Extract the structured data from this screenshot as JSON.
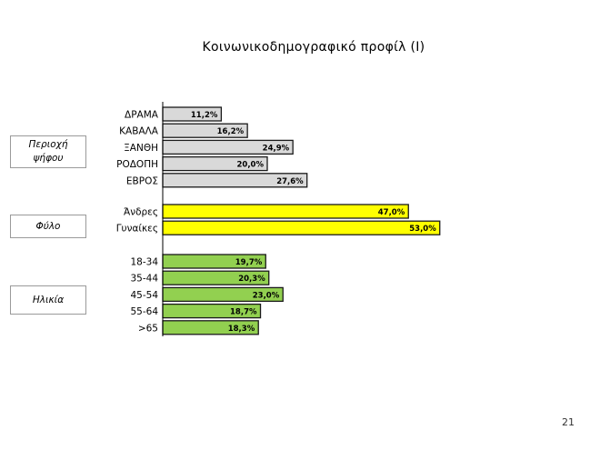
{
  "slide": {
    "title": "Κοινωνικοδημογραφικό προφίλ (Ι)",
    "page_number": "21"
  },
  "groups": [
    {
      "label": "Περιοχή ψήφου"
    },
    {
      "label": "Φύλο"
    },
    {
      "label": "Ηλικία"
    }
  ],
  "colors": {
    "region": "#d9d9d9",
    "gender": "#ffff00",
    "age": "#92d050",
    "outline": "#1a1a1a"
  },
  "chart_data": {
    "type": "bar",
    "orientation": "horizontal",
    "xlim": [
      0,
      65
    ],
    "grid": false,
    "groups": [
      {
        "name": "Περιοχή ψήφου",
        "color_key": "region",
        "categories": [
          "ΔΡΑΜΑ",
          "ΚΑΒΑΛΑ",
          "ΞΑΝΘΗ",
          "ΡΟΔΟΠΗ",
          "ΕΒΡΟΣ"
        ],
        "values": [
          11.2,
          16.2,
          24.9,
          20.0,
          27.6
        ],
        "labels": [
          "11,2%",
          "16,2%",
          "24,9%",
          "20,0%",
          "27,6%"
        ]
      },
      {
        "name": "Φύλο",
        "color_key": "gender",
        "categories": [
          "Άνδρες",
          "Γυναίκες"
        ],
        "values": [
          47.0,
          53.0
        ],
        "labels": [
          "47,0%",
          "53,0%"
        ]
      },
      {
        "name": "Ηλικία",
        "color_key": "age",
        "categories": [
          "18-34",
          "35-44",
          "45-54",
          "55-64",
          ">65"
        ],
        "values": [
          19.7,
          20.3,
          23.0,
          18.7,
          18.3
        ],
        "labels": [
          "19,7%",
          "20,3%",
          "23,0%",
          "18,7%",
          "18,3%"
        ]
      }
    ]
  }
}
